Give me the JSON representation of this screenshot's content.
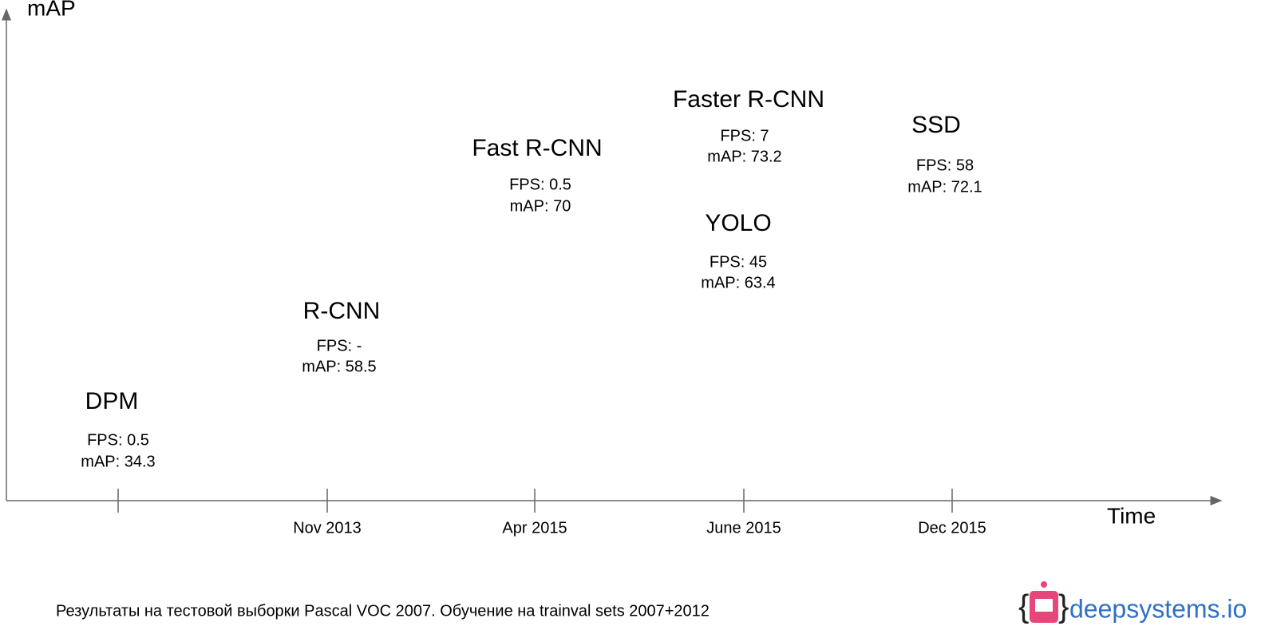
{
  "axes": {
    "y_label": "mAP",
    "x_label": "Time"
  },
  "ticks": [
    null,
    "Nov 2013",
    "Apr 2015",
    "June 2015",
    "Dec 2015"
  ],
  "models": [
    {
      "name": "DPM",
      "fps": "FPS: 0.5",
      "map": "mAP: 34.3"
    },
    {
      "name": "R-CNN",
      "fps": "FPS: -",
      "map": "mAP: 58.5"
    },
    {
      "name": "Fast R-CNN",
      "fps": "FPS: 0.5",
      "map": "mAP: 70"
    },
    {
      "name": "Faster R-CNN",
      "fps": "FPS: 7",
      "map": "mAP: 73.2"
    },
    {
      "name": "YOLO",
      "fps": "FPS: 45",
      "map": "mAP: 63.4"
    },
    {
      "name": "SSD",
      "fps": "FPS: 58",
      "map": "mAP: 72.1"
    }
  ],
  "footer": "Результаты на тестовой выборки Pascal VOC 2007. Обучение на trainval sets 2007+2012",
  "logo": "deepsystems.io"
}
